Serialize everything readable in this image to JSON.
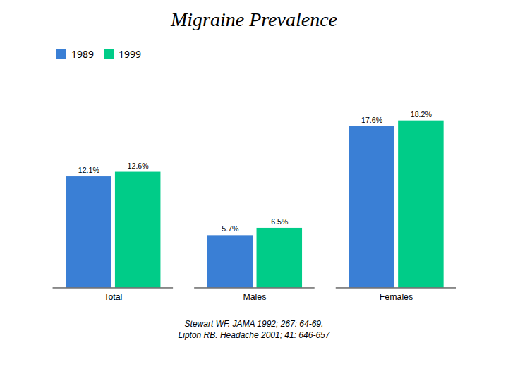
{
  "chart_data": {
    "type": "bar",
    "title": "Migraine Prevalence",
    "categories": [
      "Total",
      "Males",
      "Females"
    ],
    "series": [
      {
        "name": "1989",
        "color": "#3A7FD5",
        "values": [
          12.1,
          5.7,
          17.6
        ],
        "value_labels": [
          "12.1%",
          "5.7%",
          "17.6%"
        ]
      },
      {
        "name": "1999",
        "color": "#00CC88",
        "values": [
          12.6,
          6.5,
          18.2
        ],
        "value_labels": [
          "12.6%",
          "6.5%",
          "18.2%"
        ]
      }
    ],
    "ylim": [
      0,
      22
    ],
    "grid": false,
    "legend": "upper left",
    "data_labels": true,
    "tick_labels": "x",
    "annotations": [
      "Stewart WF. JAMA 1992; 267: 64-69.",
      "Lipton RB. Headache 2001; 41: 646-657"
    ]
  }
}
